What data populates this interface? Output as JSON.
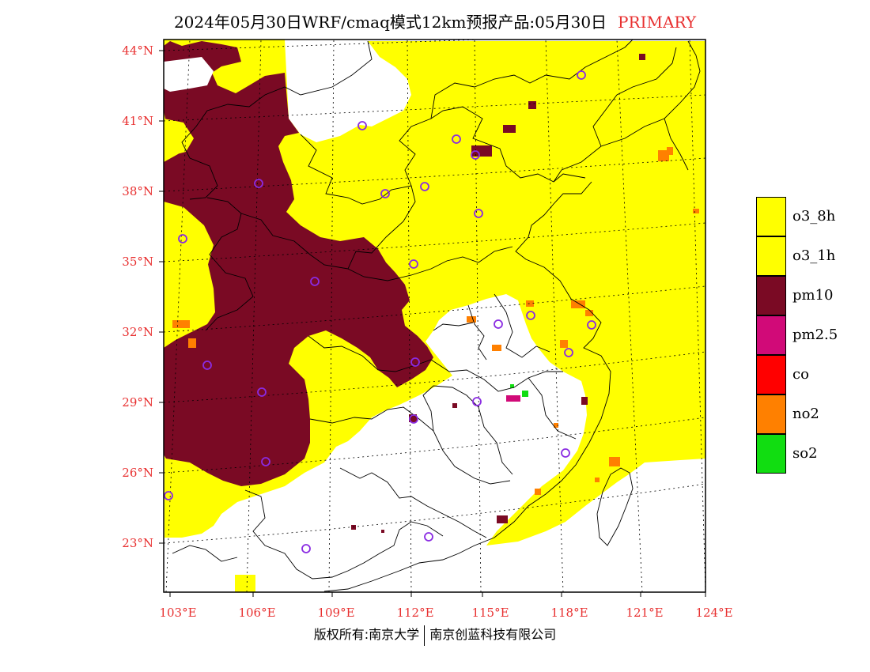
{
  "title": {
    "main": "2024年05月30日WRF/cmaq模式12km预报产品:05月30日",
    "tag": "PRIMARY"
  },
  "lat_labels": [
    "44°N",
    "41°N",
    "38°N",
    "35°N",
    "32°N",
    "29°N",
    "26°N",
    "23°N"
  ],
  "lon_labels": [
    "103°E",
    "106°E",
    "109°E",
    "112°E",
    "115°E",
    "118°E",
    "121°E",
    "124°E"
  ],
  "legend": [
    {
      "label": "o3_8h",
      "color": "#ffff00"
    },
    {
      "label": "o3_1h",
      "color": "#ffff00"
    },
    {
      "label": "pm10",
      "color": "#7a0a24"
    },
    {
      "label": "pm2.5",
      "color": "#d10a78"
    },
    {
      "label": "co",
      "color": "#ff0000"
    },
    {
      "label": "no2",
      "color": "#ff8000"
    },
    {
      "label": "so2",
      "color": "#11dd11"
    }
  ],
  "footer": {
    "left": "版权所有:南京大学",
    "right": "南京创蓝科技有限公司"
  },
  "colors": {
    "label_red": "#e83030",
    "station_marker": "#8a2be2"
  }
}
